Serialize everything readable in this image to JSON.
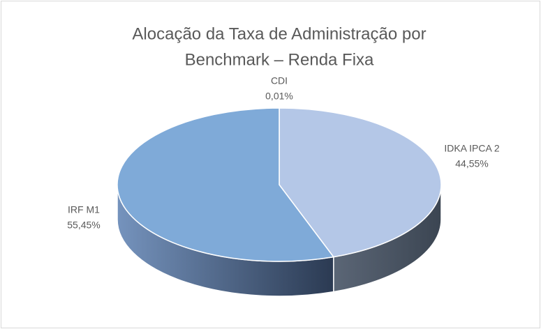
{
  "chart_data": {
    "type": "pie",
    "title": [
      "Alocação da Taxa de Administração por",
      "Benchmark – Renda Fixa"
    ],
    "categories": [
      "CDI",
      "IDKA IPCA 2",
      "IRF M1"
    ],
    "values": [
      0.01,
      44.55,
      55.45
    ],
    "value_labels": [
      "0,01%",
      "44,55%",
      "55,45%"
    ],
    "colors": [
      "#9dc3e6",
      "#b4c7e7",
      "#7faad8"
    ]
  }
}
